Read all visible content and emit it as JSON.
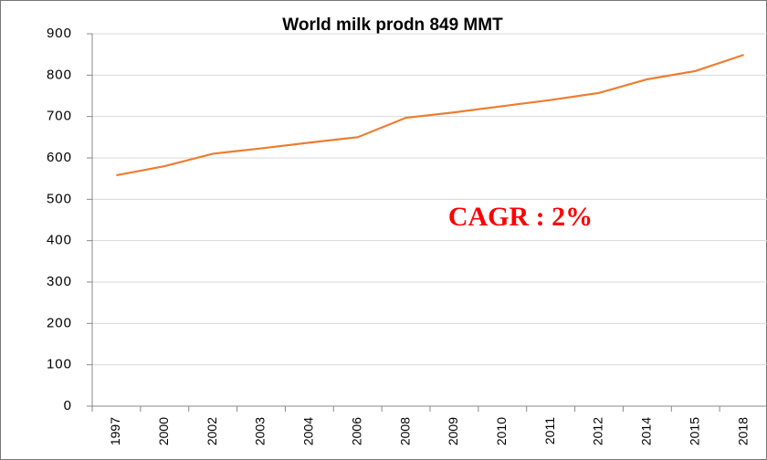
{
  "chart_data": {
    "type": "line",
    "title": "World milk prodn 849 MMT",
    "annotation": "CAGR : 2%",
    "categories": [
      "1997",
      "2000",
      "2002",
      "2003",
      "2004",
      "2006",
      "2008",
      "2009",
      "2010",
      "2011",
      "2012",
      "2014",
      "2015",
      "2018"
    ],
    "series": [
      {
        "color": "#ed7d31",
        "values": [
          558,
          580,
          610,
          623,
          637,
          650,
          697,
          710,
          725,
          740,
          757,
          790,
          810,
          849
        ]
      }
    ],
    "ylim": [
      0,
      900
    ],
    "yticks": [
      0,
      100,
      200,
      300,
      400,
      500,
      600,
      700,
      800,
      900
    ],
    "grid": true
  }
}
